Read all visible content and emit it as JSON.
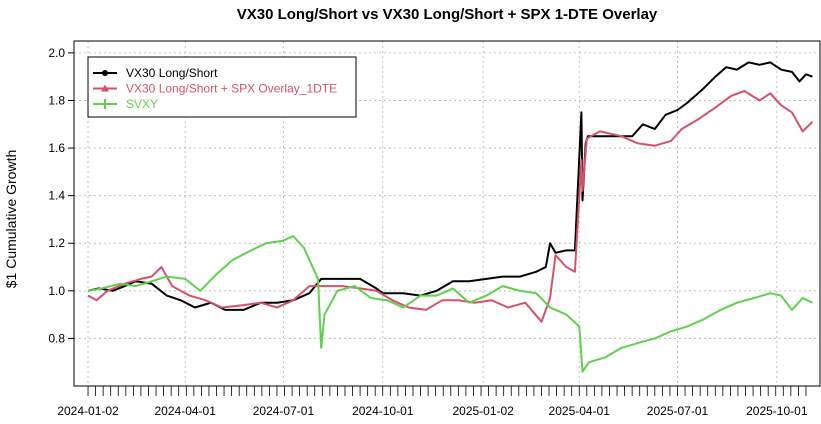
{
  "chart_data": {
    "type": "line",
    "title": "VX30 Long/Short vs VX30 Long/Short + SPX 1-DTE Overlay",
    "xlabel": "",
    "ylabel": "$1 Cumulative Growth",
    "xlim": [
      "2023-12-20",
      "2025-11-10"
    ],
    "ylim": [
      0.6,
      2.05
    ],
    "yticks": [
      0.8,
      1.0,
      1.2,
      1.4,
      1.6,
      1.8,
      2.0
    ],
    "ytick_labels": [
      "0.8",
      "1.0",
      "1.2",
      "1.4",
      "1.6",
      "1.8",
      "2.0"
    ],
    "xticks": [
      "2024-01-02",
      "2024-04-01",
      "2024-07-01",
      "2024-10-01",
      "2025-01-02",
      "2025-04-01",
      "2025-07-01",
      "2025-10-01"
    ],
    "grid": true,
    "legend_position": "top-left",
    "series": [
      {
        "name": "VX30 Long/Short",
        "color": "#000000",
        "marker": "circle",
        "points": [
          [
            "2024-01-02",
            1.0
          ],
          [
            "2024-01-12",
            1.01
          ],
          [
            "2024-01-25",
            1.0
          ],
          [
            "2024-02-05",
            1.02
          ],
          [
            "2024-02-15",
            1.04
          ],
          [
            "2024-03-01",
            1.03
          ],
          [
            "2024-03-15",
            0.98
          ],
          [
            "2024-03-28",
            0.96
          ],
          [
            "2024-04-10",
            0.93
          ],
          [
            "2024-04-25",
            0.95
          ],
          [
            "2024-05-08",
            0.92
          ],
          [
            "2024-05-25",
            0.92
          ],
          [
            "2024-06-10",
            0.95
          ],
          [
            "2024-06-25",
            0.95
          ],
          [
            "2024-07-10",
            0.96
          ],
          [
            "2024-07-25",
            0.99
          ],
          [
            "2024-08-05",
            1.05
          ],
          [
            "2024-08-25",
            1.05
          ],
          [
            "2024-09-10",
            1.05
          ],
          [
            "2024-09-25",
            1.01
          ],
          [
            "2024-10-01",
            0.99
          ],
          [
            "2024-10-20",
            0.99
          ],
          [
            "2024-11-05",
            0.98
          ],
          [
            "2024-11-20",
            1.0
          ],
          [
            "2024-12-05",
            1.04
          ],
          [
            "2024-12-20",
            1.04
          ],
          [
            "2025-01-05",
            1.05
          ],
          [
            "2025-01-20",
            1.06
          ],
          [
            "2025-02-05",
            1.06
          ],
          [
            "2025-02-20",
            1.08
          ],
          [
            "2025-03-01",
            1.1
          ],
          [
            "2025-03-05",
            1.2
          ],
          [
            "2025-03-10",
            1.16
          ],
          [
            "2025-03-20",
            1.17
          ],
          [
            "2025-03-28",
            1.17
          ],
          [
            "2025-04-03",
            1.75
          ],
          [
            "2025-04-04",
            1.38
          ],
          [
            "2025-04-07",
            1.62
          ],
          [
            "2025-04-09",
            1.65
          ],
          [
            "2025-05-01",
            1.65
          ],
          [
            "2025-05-20",
            1.65
          ],
          [
            "2025-05-30",
            1.7
          ],
          [
            "2025-06-10",
            1.68
          ],
          [
            "2025-06-20",
            1.74
          ],
          [
            "2025-07-01",
            1.76
          ],
          [
            "2025-07-10",
            1.79
          ],
          [
            "2025-07-25",
            1.85
          ],
          [
            "2025-08-05",
            1.9
          ],
          [
            "2025-08-15",
            1.94
          ],
          [
            "2025-08-25",
            1.93
          ],
          [
            "2025-09-05",
            1.96
          ],
          [
            "2025-09-15",
            1.95
          ],
          [
            "2025-09-25",
            1.96
          ],
          [
            "2025-10-05",
            1.93
          ],
          [
            "2025-10-15",
            1.92
          ],
          [
            "2025-10-22",
            1.88
          ],
          [
            "2025-10-28",
            1.91
          ],
          [
            "2025-11-03",
            1.9
          ]
        ]
      },
      {
        "name": "VX30 Long/Short + SPX Overlay_1DTE",
        "color": "#d6526b",
        "marker": "triangle",
        "points": [
          [
            "2024-01-02",
            0.98
          ],
          [
            "2024-01-10",
            0.96
          ],
          [
            "2024-01-20",
            1.0
          ],
          [
            "2024-02-05",
            1.03
          ],
          [
            "2024-02-20",
            1.05
          ],
          [
            "2024-03-01",
            1.06
          ],
          [
            "2024-03-10",
            1.1
          ],
          [
            "2024-03-20",
            1.02
          ],
          [
            "2024-04-05",
            0.98
          ],
          [
            "2024-04-20",
            0.96
          ],
          [
            "2024-05-05",
            0.93
          ],
          [
            "2024-05-25",
            0.94
          ],
          [
            "2024-06-10",
            0.95
          ],
          [
            "2024-06-25",
            0.93
          ],
          [
            "2024-07-10",
            0.96
          ],
          [
            "2024-07-25",
            1.02
          ],
          [
            "2024-08-05",
            1.02
          ],
          [
            "2024-08-25",
            1.02
          ],
          [
            "2024-09-10",
            1.01
          ],
          [
            "2024-09-25",
            1.0
          ],
          [
            "2024-10-10",
            0.96
          ],
          [
            "2024-10-25",
            0.93
          ],
          [
            "2024-11-10",
            0.92
          ],
          [
            "2024-11-25",
            0.96
          ],
          [
            "2024-12-10",
            0.96
          ],
          [
            "2024-12-25",
            0.95
          ],
          [
            "2025-01-10",
            0.96
          ],
          [
            "2025-01-25",
            0.93
          ],
          [
            "2025-02-10",
            0.95
          ],
          [
            "2025-02-25",
            0.87
          ],
          [
            "2025-03-05",
            0.97
          ],
          [
            "2025-03-10",
            1.15
          ],
          [
            "2025-03-20",
            1.1
          ],
          [
            "2025-03-28",
            1.08
          ],
          [
            "2025-04-03",
            1.55
          ],
          [
            "2025-04-04",
            1.42
          ],
          [
            "2025-04-08",
            1.64
          ],
          [
            "2025-04-20",
            1.67
          ],
          [
            "2025-05-10",
            1.65
          ],
          [
            "2025-05-25",
            1.62
          ],
          [
            "2025-06-10",
            1.61
          ],
          [
            "2025-06-25",
            1.63
          ],
          [
            "2025-07-05",
            1.68
          ],
          [
            "2025-07-20",
            1.72
          ],
          [
            "2025-08-05",
            1.77
          ],
          [
            "2025-08-20",
            1.82
          ],
          [
            "2025-09-01",
            1.84
          ],
          [
            "2025-09-15",
            1.8
          ],
          [
            "2025-09-25",
            1.83
          ],
          [
            "2025-10-05",
            1.78
          ],
          [
            "2025-10-15",
            1.75
          ],
          [
            "2025-10-25",
            1.67
          ],
          [
            "2025-11-03",
            1.71
          ]
        ]
      },
      {
        "name": "SVXY",
        "color": "#61d04f",
        "marker": "plus",
        "points": [
          [
            "2024-01-02",
            1.0
          ],
          [
            "2024-01-15",
            1.01
          ],
          [
            "2024-02-01",
            1.03
          ],
          [
            "2024-02-15",
            1.02
          ],
          [
            "2024-03-01",
            1.04
          ],
          [
            "2024-03-15",
            1.06
          ],
          [
            "2024-04-01",
            1.05
          ],
          [
            "2024-04-15",
            1.0
          ],
          [
            "2024-04-30",
            1.07
          ],
          [
            "2024-05-15",
            1.13
          ],
          [
            "2024-06-01",
            1.17
          ],
          [
            "2024-06-15",
            1.2
          ],
          [
            "2024-06-30",
            1.21
          ],
          [
            "2024-07-10",
            1.23
          ],
          [
            "2024-07-20",
            1.18
          ],
          [
            "2024-08-02",
            1.05
          ],
          [
            "2024-08-05",
            0.76
          ],
          [
            "2024-08-08",
            0.9
          ],
          [
            "2024-08-20",
            1.0
          ],
          [
            "2024-09-05",
            1.02
          ],
          [
            "2024-09-20",
            0.97
          ],
          [
            "2024-10-05",
            0.96
          ],
          [
            "2024-10-20",
            0.93
          ],
          [
            "2024-11-05",
            0.98
          ],
          [
            "2024-11-20",
            0.98
          ],
          [
            "2024-12-05",
            1.01
          ],
          [
            "2024-12-20",
            0.95
          ],
          [
            "2025-01-05",
            0.98
          ],
          [
            "2025-01-20",
            1.02
          ],
          [
            "2025-02-05",
            1.0
          ],
          [
            "2025-02-20",
            0.99
          ],
          [
            "2025-03-05",
            0.93
          ],
          [
            "2025-03-20",
            0.9
          ],
          [
            "2025-04-01",
            0.85
          ],
          [
            "2025-04-04",
            0.66
          ],
          [
            "2025-04-10",
            0.7
          ],
          [
            "2025-04-25",
            0.72
          ],
          [
            "2025-05-10",
            0.76
          ],
          [
            "2025-05-25",
            0.78
          ],
          [
            "2025-06-10",
            0.8
          ],
          [
            "2025-06-25",
            0.83
          ],
          [
            "2025-07-10",
            0.85
          ],
          [
            "2025-07-25",
            0.88
          ],
          [
            "2025-08-10",
            0.92
          ],
          [
            "2025-08-25",
            0.95
          ],
          [
            "2025-09-10",
            0.97
          ],
          [
            "2025-09-25",
            0.99
          ],
          [
            "2025-10-05",
            0.98
          ],
          [
            "2025-10-15",
            0.92
          ],
          [
            "2025-10-25",
            0.97
          ],
          [
            "2025-11-03",
            0.95
          ]
        ]
      }
    ]
  }
}
